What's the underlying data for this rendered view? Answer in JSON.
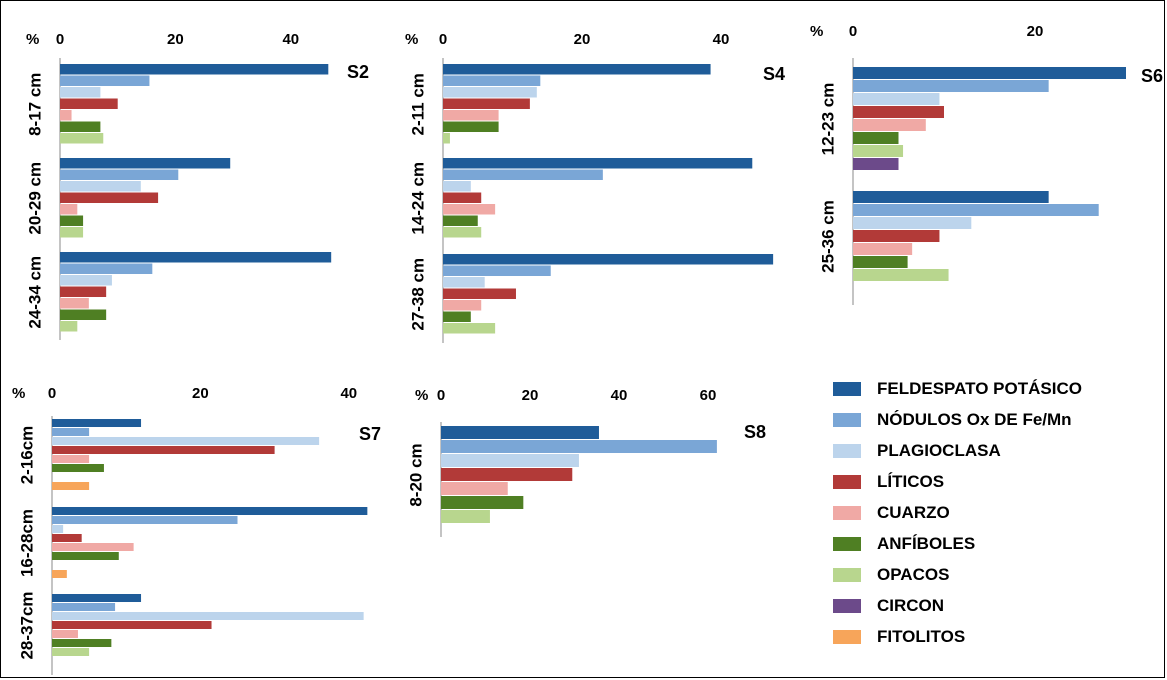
{
  "colors": {
    "feldespato": "#1f5c99",
    "nodulos": "#7aa6d6",
    "plagioclasa": "#bcd4ec",
    "liticos": "#b23a38",
    "cuarzo": "#f0a9a5",
    "anfiboles": "#4f7f23",
    "opacos": "#b8d68e",
    "circon": "#6c4a8a",
    "fitolitos": "#f7a55a"
  },
  "legend": [
    {
      "key": "feldespato",
      "label": "FELDESPATO POTÁSICO"
    },
    {
      "key": "nodulos",
      "label": "NÓDULOS Ox DE Fe/Mn"
    },
    {
      "key": "plagioclasa",
      "label": "PLAGIOCLASA"
    },
    {
      "key": "liticos",
      "label": "LÍTICOS"
    },
    {
      "key": "cuarzo",
      "label": "CUARZO"
    },
    {
      "key": "anfiboles",
      "label": "ANFÍBOLES"
    },
    {
      "key": "opacos",
      "label": "OPACOS"
    },
    {
      "key": "circon",
      "label": "CIRCON"
    },
    {
      "key": "fitolitos",
      "label": "FITOLITOS"
    }
  ],
  "chart_data": [
    {
      "type": "bar",
      "orientation": "horizontal",
      "title": "S2",
      "unit_label": "%",
      "ticks": [
        0,
        20,
        40
      ],
      "xlim": [
        0,
        48
      ],
      "groups": [
        {
          "label": "8-17 cm",
          "values": {
            "feldespato": 46.5,
            "nodulos": 15.5,
            "plagioclasa": 7,
            "liticos": 10,
            "cuarzo": 2,
            "anfiboles": 7,
            "opacos": 7.5
          }
        },
        {
          "label": "20-29 cm",
          "values": {
            "feldespato": 29.5,
            "nodulos": 20.5,
            "plagioclasa": 14,
            "liticos": 17,
            "cuarzo": 3,
            "anfiboles": 4,
            "opacos": 4
          }
        },
        {
          "label": "24-34 cm",
          "values": {
            "feldespato": 47,
            "nodulos": 16,
            "plagioclasa": 9,
            "liticos": 8,
            "cuarzo": 5,
            "anfiboles": 8,
            "opacos": 3
          }
        }
      ]
    },
    {
      "type": "bar",
      "orientation": "horizontal",
      "title": "S4",
      "unit_label": "%",
      "ticks": [
        0,
        20,
        40
      ],
      "xlim": [
        0,
        49
      ],
      "groups": [
        {
          "label": "2-11 cm",
          "values": {
            "feldespato": 38.5,
            "nodulos": 14,
            "plagioclasa": 13.5,
            "liticos": 12.5,
            "cuarzo": 8,
            "anfiboles": 8,
            "opacos": 1
          }
        },
        {
          "label": "14-24 cm",
          "values": {
            "feldespato": 44.5,
            "nodulos": 23,
            "plagioclasa": 4,
            "liticos": 5.5,
            "cuarzo": 7.5,
            "anfiboles": 5,
            "opacos": 5.5
          }
        },
        {
          "label": "27-38 cm",
          "values": {
            "feldespato": 47.5,
            "nodulos": 15.5,
            "plagioclasa": 6,
            "liticos": 10.5,
            "cuarzo": 5.5,
            "anfiboles": 4,
            "opacos": 7.5
          }
        }
      ]
    },
    {
      "type": "bar",
      "orientation": "horizontal",
      "title": "S6",
      "unit_label": "%",
      "ticks": [
        0,
        20
      ],
      "xlim": [
        0,
        32
      ],
      "groups": [
        {
          "label": "12-23 cm",
          "values": {
            "feldespato": 30,
            "nodulos": 21.5,
            "plagioclasa": 9.5,
            "liticos": 10,
            "cuarzo": 8,
            "anfiboles": 5,
            "opacos": 5.5,
            "circon": 5
          }
        },
        {
          "label": "25-36 cm",
          "values": {
            "feldespato": 21.5,
            "nodulos": 27,
            "plagioclasa": 13,
            "liticos": 9.5,
            "cuarzo": 6.5,
            "anfiboles": 6,
            "opacos": 10.5
          }
        }
      ]
    },
    {
      "type": "bar",
      "orientation": "horizontal",
      "title": "S7",
      "unit_label": "%",
      "ticks": [
        0,
        20,
        40
      ],
      "xlim": [
        0,
        43
      ],
      "groups": [
        {
          "label": "2-16cm",
          "values": {
            "feldespato": 12,
            "nodulos": 5,
            "plagioclasa": 36,
            "liticos": 30,
            "cuarzo": 5,
            "anfiboles": 7,
            "opacos": 0,
            "fitolitos": 5
          }
        },
        {
          "label": "16-28cm",
          "values": {
            "feldespato": 42.5,
            "nodulos": 25,
            "plagioclasa": 1.5,
            "liticos": 4,
            "cuarzo": 11,
            "anfiboles": 9,
            "opacos": 0,
            "fitolitos": 2
          }
        },
        {
          "label": "28-37cm",
          "values": {
            "feldespato": 12,
            "nodulos": 8.5,
            "plagioclasa": 42,
            "liticos": 21.5,
            "cuarzo": 3.5,
            "anfiboles": 8,
            "opacos": 5
          }
        }
      ]
    },
    {
      "type": "bar",
      "orientation": "horizontal",
      "title": "S8",
      "unit_label": "%",
      "ticks": [
        0,
        20,
        40,
        60
      ],
      "xlim": [
        0,
        62
      ],
      "groups": [
        {
          "label": "8-20 cm",
          "values": {
            "feldespato": 35.5,
            "nodulos": 62,
            "plagioclasa": 31,
            "liticos": 29.5,
            "cuarzo": 15,
            "anfiboles": 18.5,
            "opacos": 11
          }
        }
      ]
    }
  ]
}
